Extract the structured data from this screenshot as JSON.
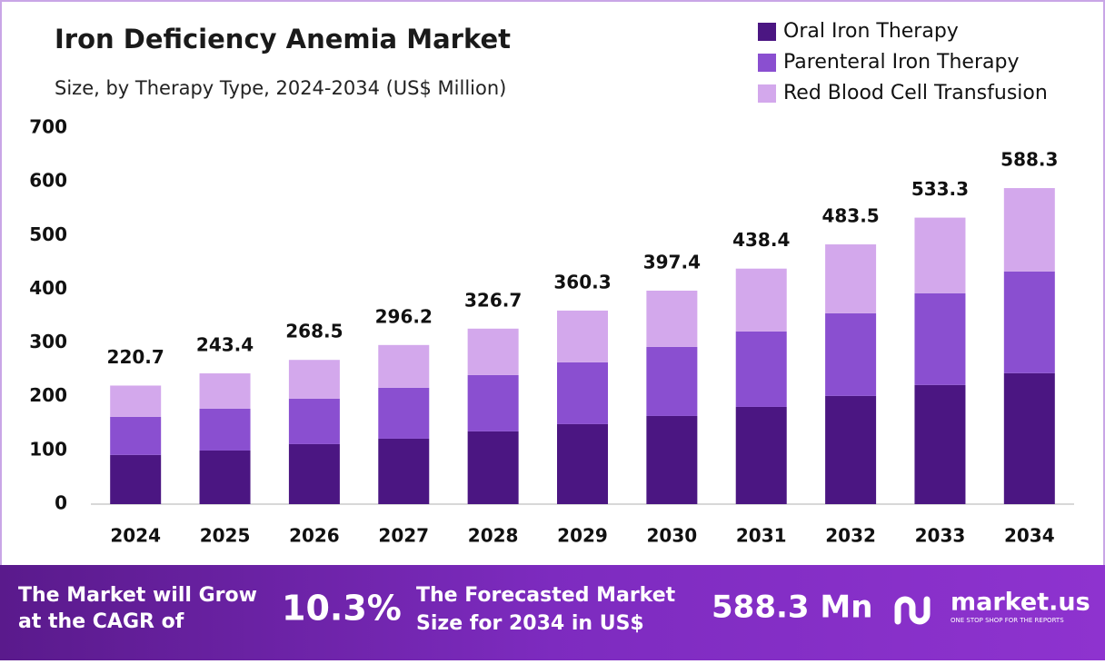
{
  "chart_data": {
    "type": "stacked_bar",
    "title": "Iron Deficiency Anemia Market",
    "subtitle": "Size, by Therapy Type, 2024-2034 (US$ Million)",
    "categories": [
      "2024",
      "2025",
      "2026",
      "2027",
      "2028",
      "2029",
      "2030",
      "2031",
      "2032",
      "2033",
      "2034"
    ],
    "series": [
      {
        "name": "Oral Iron Therapy",
        "color": "#4b1682",
        "values": [
          91.5,
          99.8,
          111.7,
          121.8,
          135.4,
          148.9,
          164.1,
          181.0,
          201.4,
          221.7,
          243.7
        ]
      },
      {
        "name": "Parenteral Iron Therapy",
        "color": "#8a4fd0",
        "values": [
          71.0,
          77.9,
          84.6,
          94.8,
          104.9,
          115.1,
          128.6,
          140.5,
          153.9,
          170.9,
          189.5
        ]
      },
      {
        "name": "Red Blood Cell Transfusion",
        "color": "#d3a8ec",
        "values": [
          58.2,
          65.7,
          72.2,
          79.6,
          86.4,
          96.3,
          104.7,
          116.9,
          128.2,
          140.7,
          155.1
        ]
      }
    ],
    "totals": [
      220.7,
      243.4,
      268.5,
      296.2,
      326.7,
      360.3,
      397.4,
      438.4,
      483.5,
      533.3,
      588.3
    ],
    "ylim": [
      0,
      700
    ],
    "yticks": [
      0,
      100,
      200,
      300,
      400,
      500,
      600,
      700
    ],
    "legend": "top-right"
  },
  "footer": {
    "cagr_label": [
      "The Market will Grow",
      "at the CAGR of"
    ],
    "cagr": "10.3%",
    "forecast_label": [
      "The Forecasted Market",
      "Size for 2034 in US$"
    ],
    "forecast": "588.3 Mn",
    "brand": "market.us",
    "tagline": "ONE STOP SHOP FOR THE REPORTS"
  }
}
